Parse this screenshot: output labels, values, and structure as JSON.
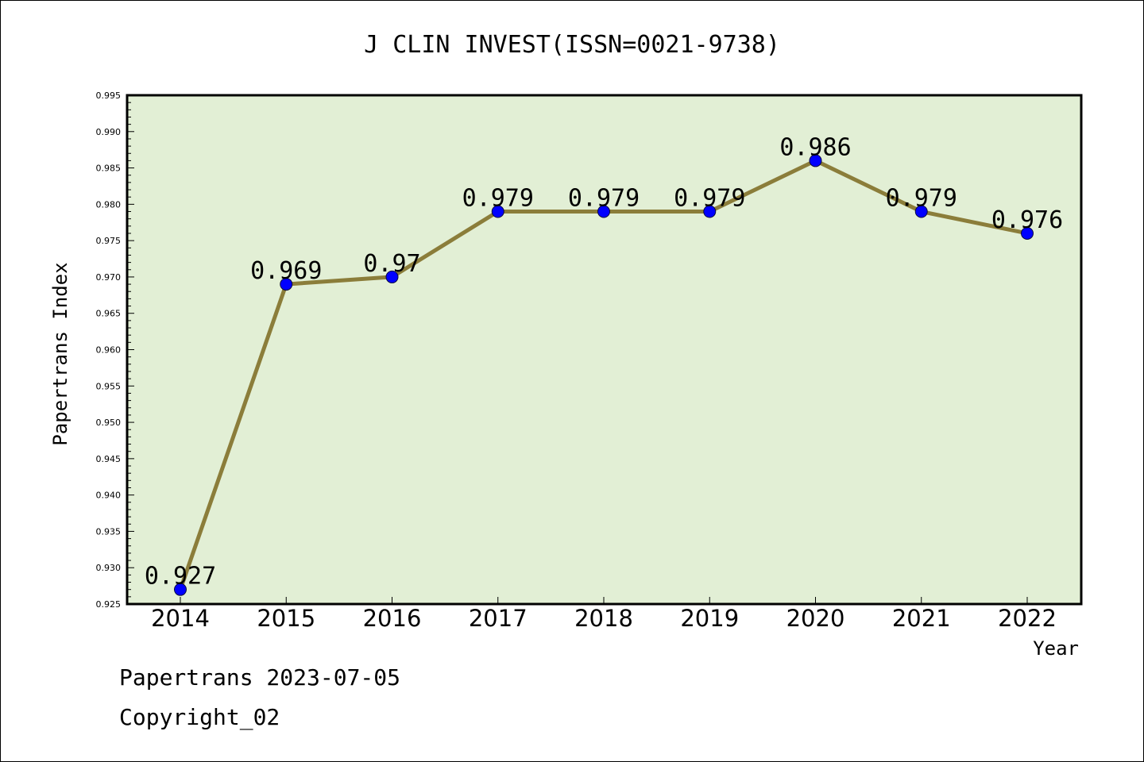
{
  "chart_data": {
    "type": "line",
    "title": "J CLIN INVEST(ISSN=0021-9738)",
    "xlabel": "Year",
    "ylabel": "Papertrans Index",
    "categories": [
      "2014",
      "2015",
      "2016",
      "2017",
      "2018",
      "2019",
      "2020",
      "2021",
      "2022"
    ],
    "series": [
      {
        "values": [
          0.927,
          0.969,
          0.97,
          0.979,
          0.979,
          0.979,
          0.986,
          0.979,
          0.976
        ]
      }
    ],
    "data_labels": [
      "0.927",
      "0.969",
      "0.97",
      "0.979",
      "0.979",
      "0.979",
      "0.986",
      "0.979",
      "0.976"
    ],
    "ylim": [
      0.925,
      0.995
    ],
    "yticks": [
      "0.925",
      "0.930",
      "0.935",
      "0.940",
      "0.945",
      "0.950",
      "0.955",
      "0.960",
      "0.965",
      "0.970",
      "0.975",
      "0.980",
      "0.985",
      "0.990",
      "0.995"
    ],
    "grid": false,
    "legend": "none",
    "colors": {
      "plot_bg": "#e2efd5",
      "line": "#8b7d3a",
      "marker": "#0000ff"
    }
  },
  "footer": {
    "line1": "Papertrans 2023-07-05",
    "line2": "Copyright_02"
  }
}
